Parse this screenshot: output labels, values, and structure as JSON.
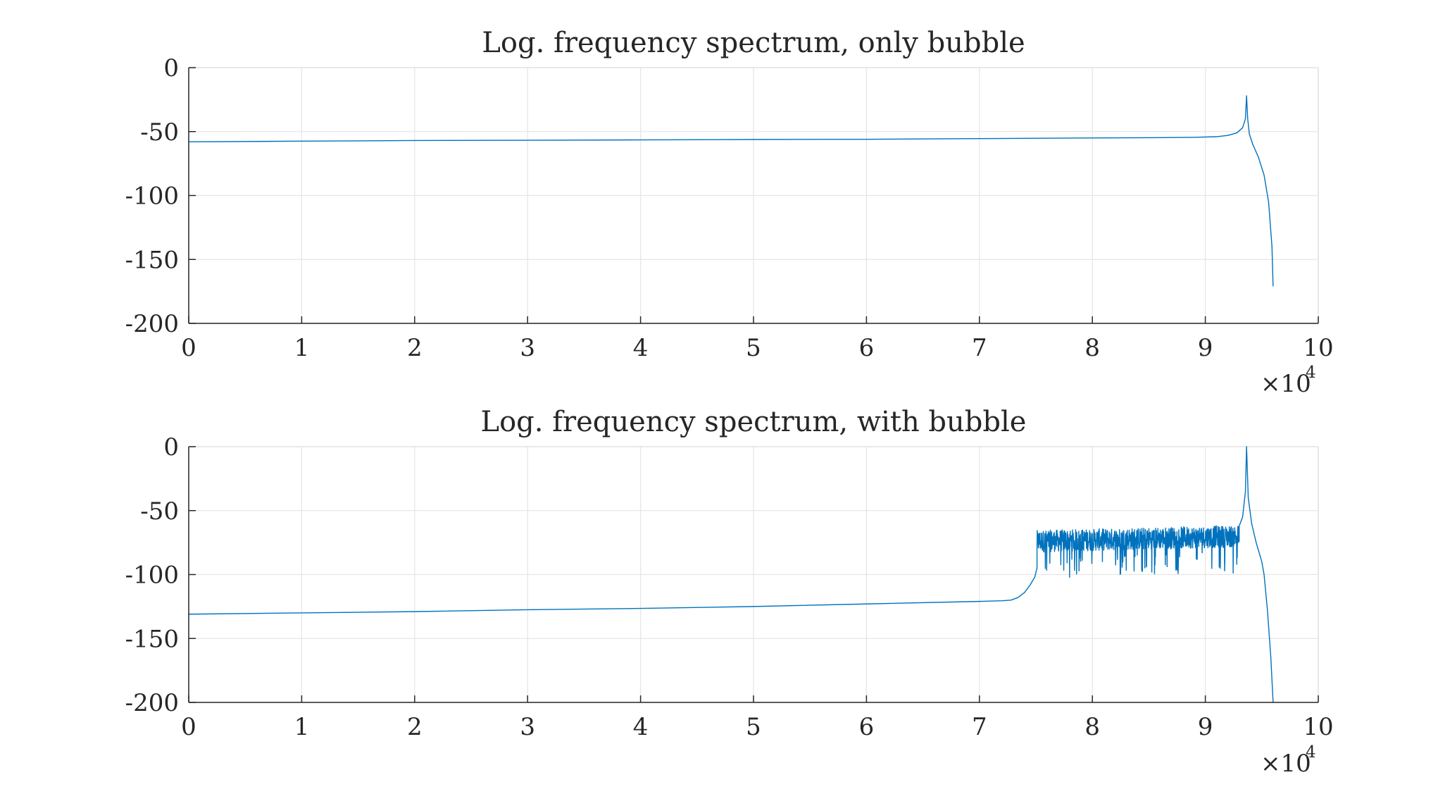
{
  "chart_data": [
    {
      "type": "line",
      "title": "Log. frequency spectrum, only bubble",
      "xlabel": "",
      "ylabel": "",
      "xlim": [
        0,
        100000
      ],
      "ylim": [
        -200,
        0
      ],
      "x_ticks": [
        0,
        1,
        2,
        3,
        4,
        5,
        6,
        7,
        8,
        9,
        10
      ],
      "y_ticks": [
        0,
        -50,
        -100,
        -150,
        -200
      ],
      "x_tick_labels": [
        "0",
        "1",
        "2",
        "3",
        "4",
        "5",
        "6",
        "7",
        "8",
        "9",
        "10"
      ],
      "y_tick_labels": [
        "0",
        "-50",
        "-100",
        "-150",
        "-200"
      ],
      "x_exponent": {
        "base": "×10",
        "power": "4"
      },
      "grid": true,
      "line_color": "#0072BD",
      "series": [
        {
          "x": [
            0,
            10000,
            20000,
            30000,
            40000,
            50000,
            60000,
            70000,
            80000,
            85000,
            89000,
            91000,
            92000,
            92800,
            93300,
            93550,
            93650,
            93750,
            93900,
            94200,
            94700,
            95200,
            95600,
            95900,
            96000
          ],
          "y": [
            -58,
            -57.5,
            -57,
            -56.8,
            -56.5,
            -56.2,
            -56,
            -55.5,
            -55,
            -54.8,
            -54.5,
            -54,
            -53,
            -51,
            -47,
            -40,
            -22,
            -40,
            -52,
            -60,
            -70,
            -84,
            -105,
            -140,
            -171
          ]
        }
      ]
    },
    {
      "type": "line",
      "title": "Log. frequency spectrum, with bubble",
      "xlabel": "",
      "ylabel": "",
      "xlim": [
        0,
        100000
      ],
      "ylim": [
        -200,
        0
      ],
      "x_ticks": [
        0,
        1,
        2,
        3,
        4,
        5,
        6,
        7,
        8,
        9,
        10
      ],
      "y_ticks": [
        0,
        -50,
        -100,
        -150,
        -200
      ],
      "x_tick_labels": [
        "0",
        "1",
        "2",
        "3",
        "4",
        "5",
        "6",
        "7",
        "8",
        "9",
        "10"
      ],
      "y_tick_labels": [
        "0",
        "-50",
        "-100",
        "-150",
        "-200"
      ],
      "x_exponent": {
        "base": "×10",
        "power": "4"
      },
      "grid": true,
      "line_color": "#0072BD",
      "series": [
        {
          "baseline_x": [
            0,
            10000,
            20000,
            30000,
            40000,
            50000,
            60000,
            70000,
            72000,
            72800,
            73400,
            74000,
            74500,
            74900,
            75100
          ],
          "baseline_y": [
            -131,
            -130,
            -129,
            -127.5,
            -126.5,
            -125,
            -123,
            -121,
            -120.5,
            -120,
            -118,
            -114,
            -108,
            -102,
            -95
          ],
          "noisy_band": {
            "x_start": 75100,
            "x_end": 93000,
            "upper_envelope": -65,
            "mean": -74,
            "lower_envelope": -103
          },
          "tail_x": [
            93000,
            93300,
            93550,
            93650,
            93800,
            94100,
            94500,
            95000,
            95200,
            95500,
            95800,
            96000
          ],
          "tail_y": [
            -62,
            -55,
            -35,
            0,
            -40,
            -60,
            -75,
            -90,
            -100,
            -128,
            -165,
            -200
          ]
        }
      ]
    }
  ]
}
